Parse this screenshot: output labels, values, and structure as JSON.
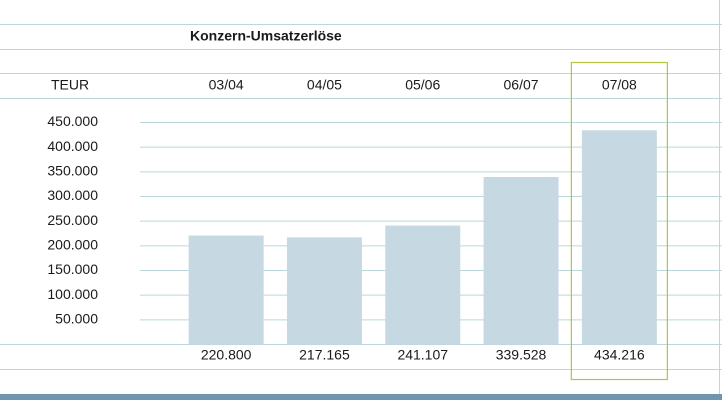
{
  "chart_data": {
    "type": "bar",
    "title": "Konzern-Umsatzerlöse",
    "unit_label": "TEUR",
    "categories": [
      "03/04",
      "04/05",
      "05/06",
      "06/07",
      "07/08"
    ],
    "values": [
      220800,
      217165,
      241107,
      339528,
      434216
    ],
    "value_labels": [
      "220.800",
      "217.165",
      "241.107",
      "339.528",
      "434.216"
    ],
    "color": "#c6d9e3",
    "ylim": [
      0,
      450000
    ],
    "yticks": [
      {
        "value": 50000,
        "label": "50.000"
      },
      {
        "value": 100000,
        "label": "100.000"
      },
      {
        "value": 150000,
        "label": "150.000"
      },
      {
        "value": 200000,
        "label": "200.000"
      },
      {
        "value": 250000,
        "label": "250.000"
      },
      {
        "value": 300000,
        "label": "300.000"
      },
      {
        "value": 350000,
        "label": "350.000"
      },
      {
        "value": 400000,
        "label": "400.000"
      },
      {
        "value": 450000,
        "label": "450.000"
      }
    ],
    "grid": true,
    "highlighted_category": "07/08",
    "highlight_color": "#b6c43e"
  }
}
